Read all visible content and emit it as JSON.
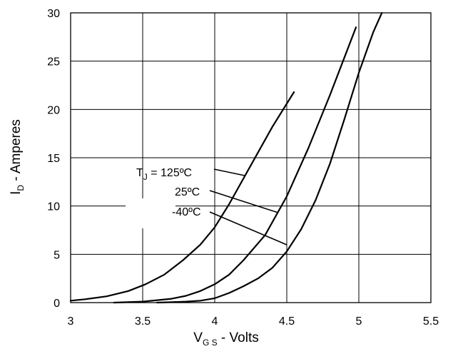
{
  "chart_data": {
    "type": "line",
    "title": "",
    "xlabel": {
      "main": "V",
      "sub": "G S",
      "rest": " - Volts"
    },
    "ylabel": {
      "main": "I",
      "sub": "D",
      "rest": " - Amperes"
    },
    "xlim": [
      3,
      5.5
    ],
    "ylim": [
      0,
      30
    ],
    "xticks": [
      3,
      3.5,
      4,
      4.5,
      5,
      5.5
    ],
    "xtick_labels": [
      "3",
      "3.5",
      "4",
      "4.5",
      "5",
      "5.5"
    ],
    "yticks": [
      0,
      5,
      10,
      15,
      20,
      25,
      30
    ],
    "ytick_labels": [
      "0",
      "5",
      "10",
      "15",
      "20",
      "25",
      "30"
    ],
    "grid": true,
    "legend": "none",
    "series": [
      {
        "label_main": "T",
        "label_sub": "J",
        "label_rest": " = 125ºC",
        "x": [
          3.0,
          3.1,
          3.25,
          3.4,
          3.52,
          3.65,
          3.78,
          3.9,
          4.0,
          4.1,
          4.25,
          4.4,
          4.55
        ],
        "y": [
          0.2,
          0.35,
          0.65,
          1.2,
          1.9,
          2.9,
          4.4,
          6.0,
          7.8,
          10.2,
          14.2,
          18.2,
          21.8
        ]
      },
      {
        "label_main": "25ºC",
        "x": [
          3.3,
          3.5,
          3.6,
          3.7,
          3.8,
          3.9,
          4.0,
          4.1,
          4.2,
          4.35,
          4.5,
          4.65,
          4.8,
          4.98
        ],
        "y": [
          0.0,
          0.1,
          0.25,
          0.4,
          0.7,
          1.2,
          1.9,
          2.9,
          4.4,
          7.0,
          11.0,
          16.0,
          21.5,
          28.5
        ]
      },
      {
        "label_main": "-40ºC",
        "x": [
          3.6,
          3.8,
          3.9,
          4.0,
          4.1,
          4.2,
          4.3,
          4.4,
          4.5,
          4.6,
          4.7,
          4.8,
          4.9,
          5.0,
          5.1,
          5.16
        ],
        "y": [
          0.0,
          0.1,
          0.2,
          0.45,
          1.0,
          1.7,
          2.5,
          3.6,
          5.3,
          7.6,
          10.6,
          14.4,
          19.0,
          23.8,
          28.0,
          30.0
        ]
      }
    ]
  }
}
